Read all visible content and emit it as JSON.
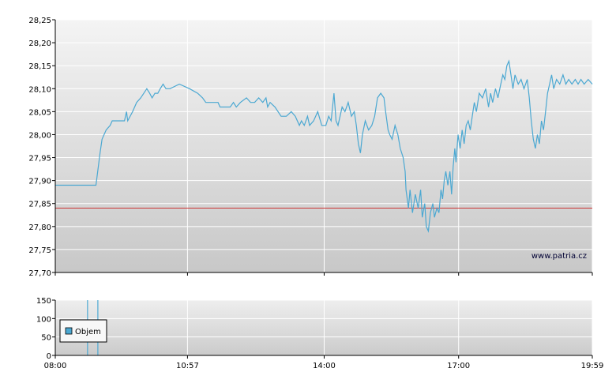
{
  "chart_data": [
    {
      "type": "line",
      "title": "",
      "xlabel": "",
      "ylabel": "",
      "ylim": [
        27.7,
        28.25
      ],
      "xlim_hours": [
        8.0,
        19.9833
      ],
      "grid": true,
      "y_ticks": [
        "28,25",
        "28,20",
        "28,15",
        "28,10",
        "28,05",
        "28,00",
        "27,95",
        "27,90",
        "27,85",
        "27,80",
        "27,75",
        "27,70"
      ],
      "x_ticks": [
        "08:00",
        "10:57",
        "14:00",
        "17:00",
        "19:59"
      ],
      "reference_line": {
        "value": 27.84,
        "color": "#cc3333"
      },
      "line_color": "#4ba8d2",
      "watermark": "www.patria.cz",
      "series": [
        {
          "points": [
            [
              8.0,
              27.89
            ],
            [
              9.0,
              27.89
            ],
            [
              9.1,
              27.96
            ],
            [
              9.15,
              27.99
            ],
            [
              9.25,
              28.01
            ],
            [
              9.35,
              28.02
            ],
            [
              9.4,
              28.03
            ],
            [
              9.55,
              28.03
            ],
            [
              9.7,
              28.03
            ],
            [
              9.75,
              28.05
            ],
            [
              9.78,
              28.03
            ],
            [
              9.9,
              28.05
            ],
            [
              10.0,
              28.07
            ],
            [
              10.1,
              28.08
            ],
            [
              10.25,
              28.1
            ],
            [
              10.32,
              28.09
            ],
            [
              10.38,
              28.08
            ],
            [
              10.45,
              28.09
            ],
            [
              10.52,
              28.09
            ],
            [
              10.58,
              28.1
            ],
            [
              10.65,
              28.11
            ],
            [
              10.72,
              28.1
            ],
            [
              10.82,
              28.1
            ],
            [
              11.05,
              28.11
            ],
            [
              11.3,
              28.1
            ],
            [
              11.5,
              28.09
            ],
            [
              11.62,
              28.08
            ],
            [
              11.7,
              28.07
            ],
            [
              11.9,
              28.07
            ],
            [
              12.0,
              28.07
            ],
            [
              12.05,
              28.06
            ],
            [
              12.2,
              28.06
            ],
            [
              12.3,
              28.06
            ],
            [
              12.38,
              28.07
            ],
            [
              12.45,
              28.06
            ],
            [
              12.55,
              28.07
            ],
            [
              12.7,
              28.08
            ],
            [
              12.8,
              28.07
            ],
            [
              12.9,
              28.07
            ],
            [
              13.0,
              28.08
            ],
            [
              13.1,
              28.07
            ],
            [
              13.18,
              28.08
            ],
            [
              13.22,
              28.06
            ],
            [
              13.28,
              28.07
            ],
            [
              13.4,
              28.06
            ],
            [
              13.55,
              28.04
            ],
            [
              13.68,
              28.04
            ],
            [
              13.8,
              28.05
            ],
            [
              13.9,
              28.04
            ],
            [
              14.0,
              28.02
            ],
            [
              14.05,
              28.03
            ],
            [
              14.12,
              28.02
            ],
            [
              14.2,
              28.04
            ],
            [
              14.25,
              28.02
            ],
            [
              14.35,
              28.03
            ],
            [
              14.45,
              28.05
            ],
            [
              14.55,
              28.02
            ],
            [
              14.65,
              28.02
            ],
            [
              14.72,
              28.04
            ],
            [
              14.78,
              28.03
            ],
            [
              14.85,
              28.09
            ],
            [
              14.9,
              28.03
            ],
            [
              14.95,
              28.02
            ],
            [
              15.0,
              28.04
            ],
            [
              15.05,
              28.06
            ],
            [
              15.12,
              28.05
            ],
            [
              15.2,
              28.07
            ],
            [
              15.28,
              28.04
            ],
            [
              15.35,
              28.05
            ],
            [
              15.4,
              28.02
            ],
            [
              15.45,
              27.98
            ],
            [
              15.5,
              27.96
            ],
            [
              15.55,
              28.0
            ],
            [
              15.62,
              28.03
            ],
            [
              15.7,
              28.01
            ],
            [
              15.78,
              28.02
            ],
            [
              15.85,
              28.04
            ],
            [
              15.92,
              28.08
            ],
            [
              16.0,
              28.09
            ],
            [
              16.08,
              28.08
            ],
            [
              16.12,
              28.05
            ],
            [
              16.18,
              28.01
            ],
            [
              16.22,
              28.0
            ],
            [
              16.28,
              27.99
            ],
            [
              16.35,
              28.02
            ],
            [
              16.42,
              28.0
            ],
            [
              16.48,
              27.97
            ],
            [
              16.55,
              27.95
            ],
            [
              16.6,
              27.92
            ],
            [
              16.62,
              27.88
            ],
            [
              16.68,
              27.84
            ],
            [
              16.72,
              27.88
            ],
            [
              16.78,
              27.83
            ],
            [
              16.85,
              27.87
            ],
            [
              16.92,
              27.84
            ],
            [
              16.98,
              27.88
            ],
            [
              17.02,
              27.82
            ],
            [
              17.08,
              27.85
            ],
            [
              17.12,
              27.8
            ],
            [
              17.17,
              27.79
            ],
            [
              17.22,
              27.83
            ],
            [
              17.28,
              27.85
            ],
            [
              17.32,
              27.82
            ],
            [
              17.38,
              27.84
            ],
            [
              17.43,
              27.83
            ],
            [
              17.48,
              27.88
            ],
            [
              17.52,
              27.86
            ],
            [
              17.56,
              27.9
            ],
            [
              17.6,
              27.92
            ],
            [
              17.65,
              27.89
            ],
            [
              17.7,
              27.92
            ],
            [
              17.74,
              27.87
            ],
            [
              17.78,
              27.93
            ],
            [
              17.82,
              27.97
            ],
            [
              17.85,
              27.94
            ],
            [
              17.9,
              28.0
            ],
            [
              17.95,
              27.97
            ],
            [
              18.0,
              28.01
            ],
            [
              18.05,
              27.98
            ],
            [
              18.1,
              28.02
            ],
            [
              18.15,
              28.03
            ],
            [
              18.2,
              28.01
            ],
            [
              18.25,
              28.04
            ],
            [
              18.3,
              28.07
            ],
            [
              18.35,
              28.05
            ],
            [
              18.42,
              28.09
            ],
            [
              18.5,
              28.08
            ],
            [
              18.58,
              28.1
            ],
            [
              18.65,
              28.06
            ],
            [
              18.7,
              28.09
            ],
            [
              18.75,
              28.07
            ],
            [
              18.82,
              28.1
            ],
            [
              18.88,
              28.08
            ],
            [
              18.95,
              28.11
            ],
            [
              19.0,
              28.13
            ],
            [
              19.05,
              28.12
            ],
            [
              19.1,
              28.15
            ],
            [
              19.15,
              28.16
            ],
            [
              19.2,
              28.13
            ],
            [
              19.25,
              28.1
            ],
            [
              19.3,
              28.13
            ],
            [
              19.38,
              28.11
            ],
            [
              19.45,
              28.12
            ],
            [
              19.52,
              28.1
            ],
            [
              19.6,
              28.12
            ],
            [
              19.65,
              28.08
            ],
            [
              19.7,
              28.03
            ],
            [
              19.75,
              27.99
            ],
            [
              19.8,
              27.97
            ],
            [
              19.85,
              28.0
            ],
            [
              19.9,
              27.98
            ],
            [
              19.95,
              28.03
            ],
            [
              20.0,
              28.01
            ],
            [
              20.05,
              28.05
            ],
            [
              20.1,
              28.09
            ],
            [
              20.15,
              28.11
            ],
            [
              20.2,
              28.13
            ],
            [
              20.25,
              28.1
            ],
            [
              20.32,
              28.12
            ],
            [
              20.4,
              28.11
            ],
            [
              20.48,
              28.13
            ],
            [
              20.55,
              28.11
            ],
            [
              20.62,
              28.12
            ],
            [
              20.7,
              28.11
            ],
            [
              20.78,
              28.12
            ],
            [
              20.85,
              28.11
            ],
            [
              20.92,
              28.12
            ],
            [
              21.0,
              28.11
            ],
            [
              21.1,
              28.12
            ],
            [
              21.2,
              28.11
            ]
          ]
        }
      ]
    },
    {
      "type": "bar",
      "title": "",
      "ylim": [
        0,
        150
      ],
      "y_ticks": [
        "150",
        "100",
        "50",
        "0"
      ],
      "x_ticks": [
        "08:00",
        "10:57",
        "14:00",
        "17:00",
        "19:59"
      ],
      "legend": {
        "label": "Objem",
        "placement": "top-left"
      },
      "bars": [
        {
          "x": 8.72,
          "value": 150
        },
        {
          "x": 8.95,
          "value": 150
        }
      ],
      "bar_color": "#4ba8d2"
    }
  ]
}
